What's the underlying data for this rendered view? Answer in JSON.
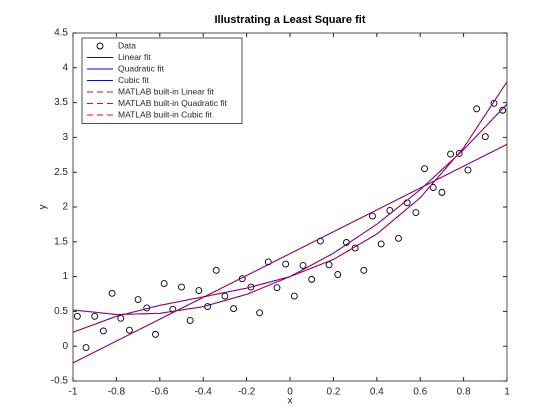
{
  "chart_data": {
    "type": "line",
    "title": "Illustrating a Least Square fit",
    "xlabel": "x",
    "ylabel": "y",
    "xlim": [
      -1,
      1
    ],
    "ylim": [
      -0.5,
      4.5
    ],
    "xticks": [
      -1,
      -0.8,
      -0.6,
      -0.4,
      -0.2,
      0,
      0.2,
      0.4,
      0.6,
      0.8,
      1
    ],
    "yticks": [
      -0.5,
      0,
      0.5,
      1,
      1.5,
      2,
      2.5,
      3,
      3.5,
      4,
      4.5
    ],
    "legend": "upper-left",
    "series": [
      {
        "name": "Data",
        "color": "#000000",
        "style": "marker",
        "x": [
          -0.98,
          -0.94,
          -0.9,
          -0.86,
          -0.82,
          -0.78,
          -0.74,
          -0.7,
          -0.66,
          -0.62,
          -0.58,
          -0.54,
          -0.5,
          -0.46,
          -0.42,
          -0.38,
          -0.34,
          -0.3,
          -0.26,
          -0.22,
          -0.18,
          -0.14,
          -0.1,
          -0.06,
          -0.02,
          0.02,
          0.06,
          0.1,
          0.14,
          0.18,
          0.22,
          0.26,
          0.3,
          0.34,
          0.38,
          0.42,
          0.46,
          0.5,
          0.54,
          0.58,
          0.62,
          0.66,
          0.7,
          0.74,
          0.78,
          0.82,
          0.86,
          0.9,
          0.94,
          0.98
        ],
        "values": [
          0.43,
          -0.02,
          0.43,
          0.22,
          0.76,
          0.4,
          0.23,
          0.67,
          0.55,
          0.17,
          0.9,
          0.53,
          0.85,
          0.37,
          0.8,
          0.57,
          1.09,
          0.72,
          0.54,
          0.97,
          0.85,
          0.48,
          1.21,
          0.84,
          1.18,
          0.72,
          1.16,
          0.96,
          1.51,
          1.17,
          1.03,
          1.49,
          1.41,
          1.09,
          1.87,
          1.47,
          1.95,
          1.55,
          2.06,
          1.92,
          2.55,
          2.28,
          2.21,
          2.76,
          2.77,
          2.53,
          3.41,
          3.01,
          3.49,
          3.39
        ]
      },
      {
        "name": "Linear fit",
        "color": "#0000ff",
        "style": "solid",
        "x": [
          -1,
          1
        ],
        "values": [
          -0.24,
          2.9
        ]
      },
      {
        "name": "Quadratic fit",
        "color": "#0000ff",
        "style": "solid",
        "x": [
          -1,
          -0.8,
          -0.6,
          -0.4,
          -0.2,
          0,
          0.2,
          0.4,
          0.6,
          0.8,
          1
        ],
        "values": [
          0.52,
          0.456,
          0.472,
          0.568,
          0.744,
          1,
          1.336,
          1.752,
          2.248,
          2.824,
          3.48
        ]
      },
      {
        "name": "Cubic fit",
        "color": "#0000ff",
        "style": "solid",
        "x": [
          -1,
          -0.8,
          -0.6,
          -0.4,
          -0.2,
          0,
          0.2,
          0.4,
          0.6,
          0.8,
          1
        ],
        "values": [
          0.2,
          0.43,
          0.587,
          0.709,
          0.834,
          1,
          1.246,
          1.611,
          2.133,
          2.85,
          3.8
        ]
      },
      {
        "name": "MATLAB built-in Linear fit",
        "color": "#ff0000",
        "style": "dashed",
        "x": [
          -1,
          1
        ],
        "values": [
          -0.24,
          2.9
        ]
      },
      {
        "name": "MATLAB built-in Quadratic fit",
        "color": "#ff0000",
        "style": "dashed",
        "x": [
          -1,
          -0.8,
          -0.6,
          -0.4,
          -0.2,
          0,
          0.2,
          0.4,
          0.6,
          0.8,
          1
        ],
        "values": [
          0.52,
          0.456,
          0.472,
          0.568,
          0.744,
          1,
          1.336,
          1.752,
          2.248,
          2.824,
          3.48
        ]
      },
      {
        "name": "MATLAB built-in Cubic fit",
        "color": "#ff0000",
        "style": "dashed",
        "x": [
          -1,
          -0.8,
          -0.6,
          -0.4,
          -0.2,
          0,
          0.2,
          0.4,
          0.6,
          0.8,
          1
        ],
        "values": [
          0.2,
          0.43,
          0.587,
          0.709,
          0.834,
          1,
          1.246,
          1.611,
          2.133,
          2.85,
          3.8
        ]
      }
    ]
  }
}
